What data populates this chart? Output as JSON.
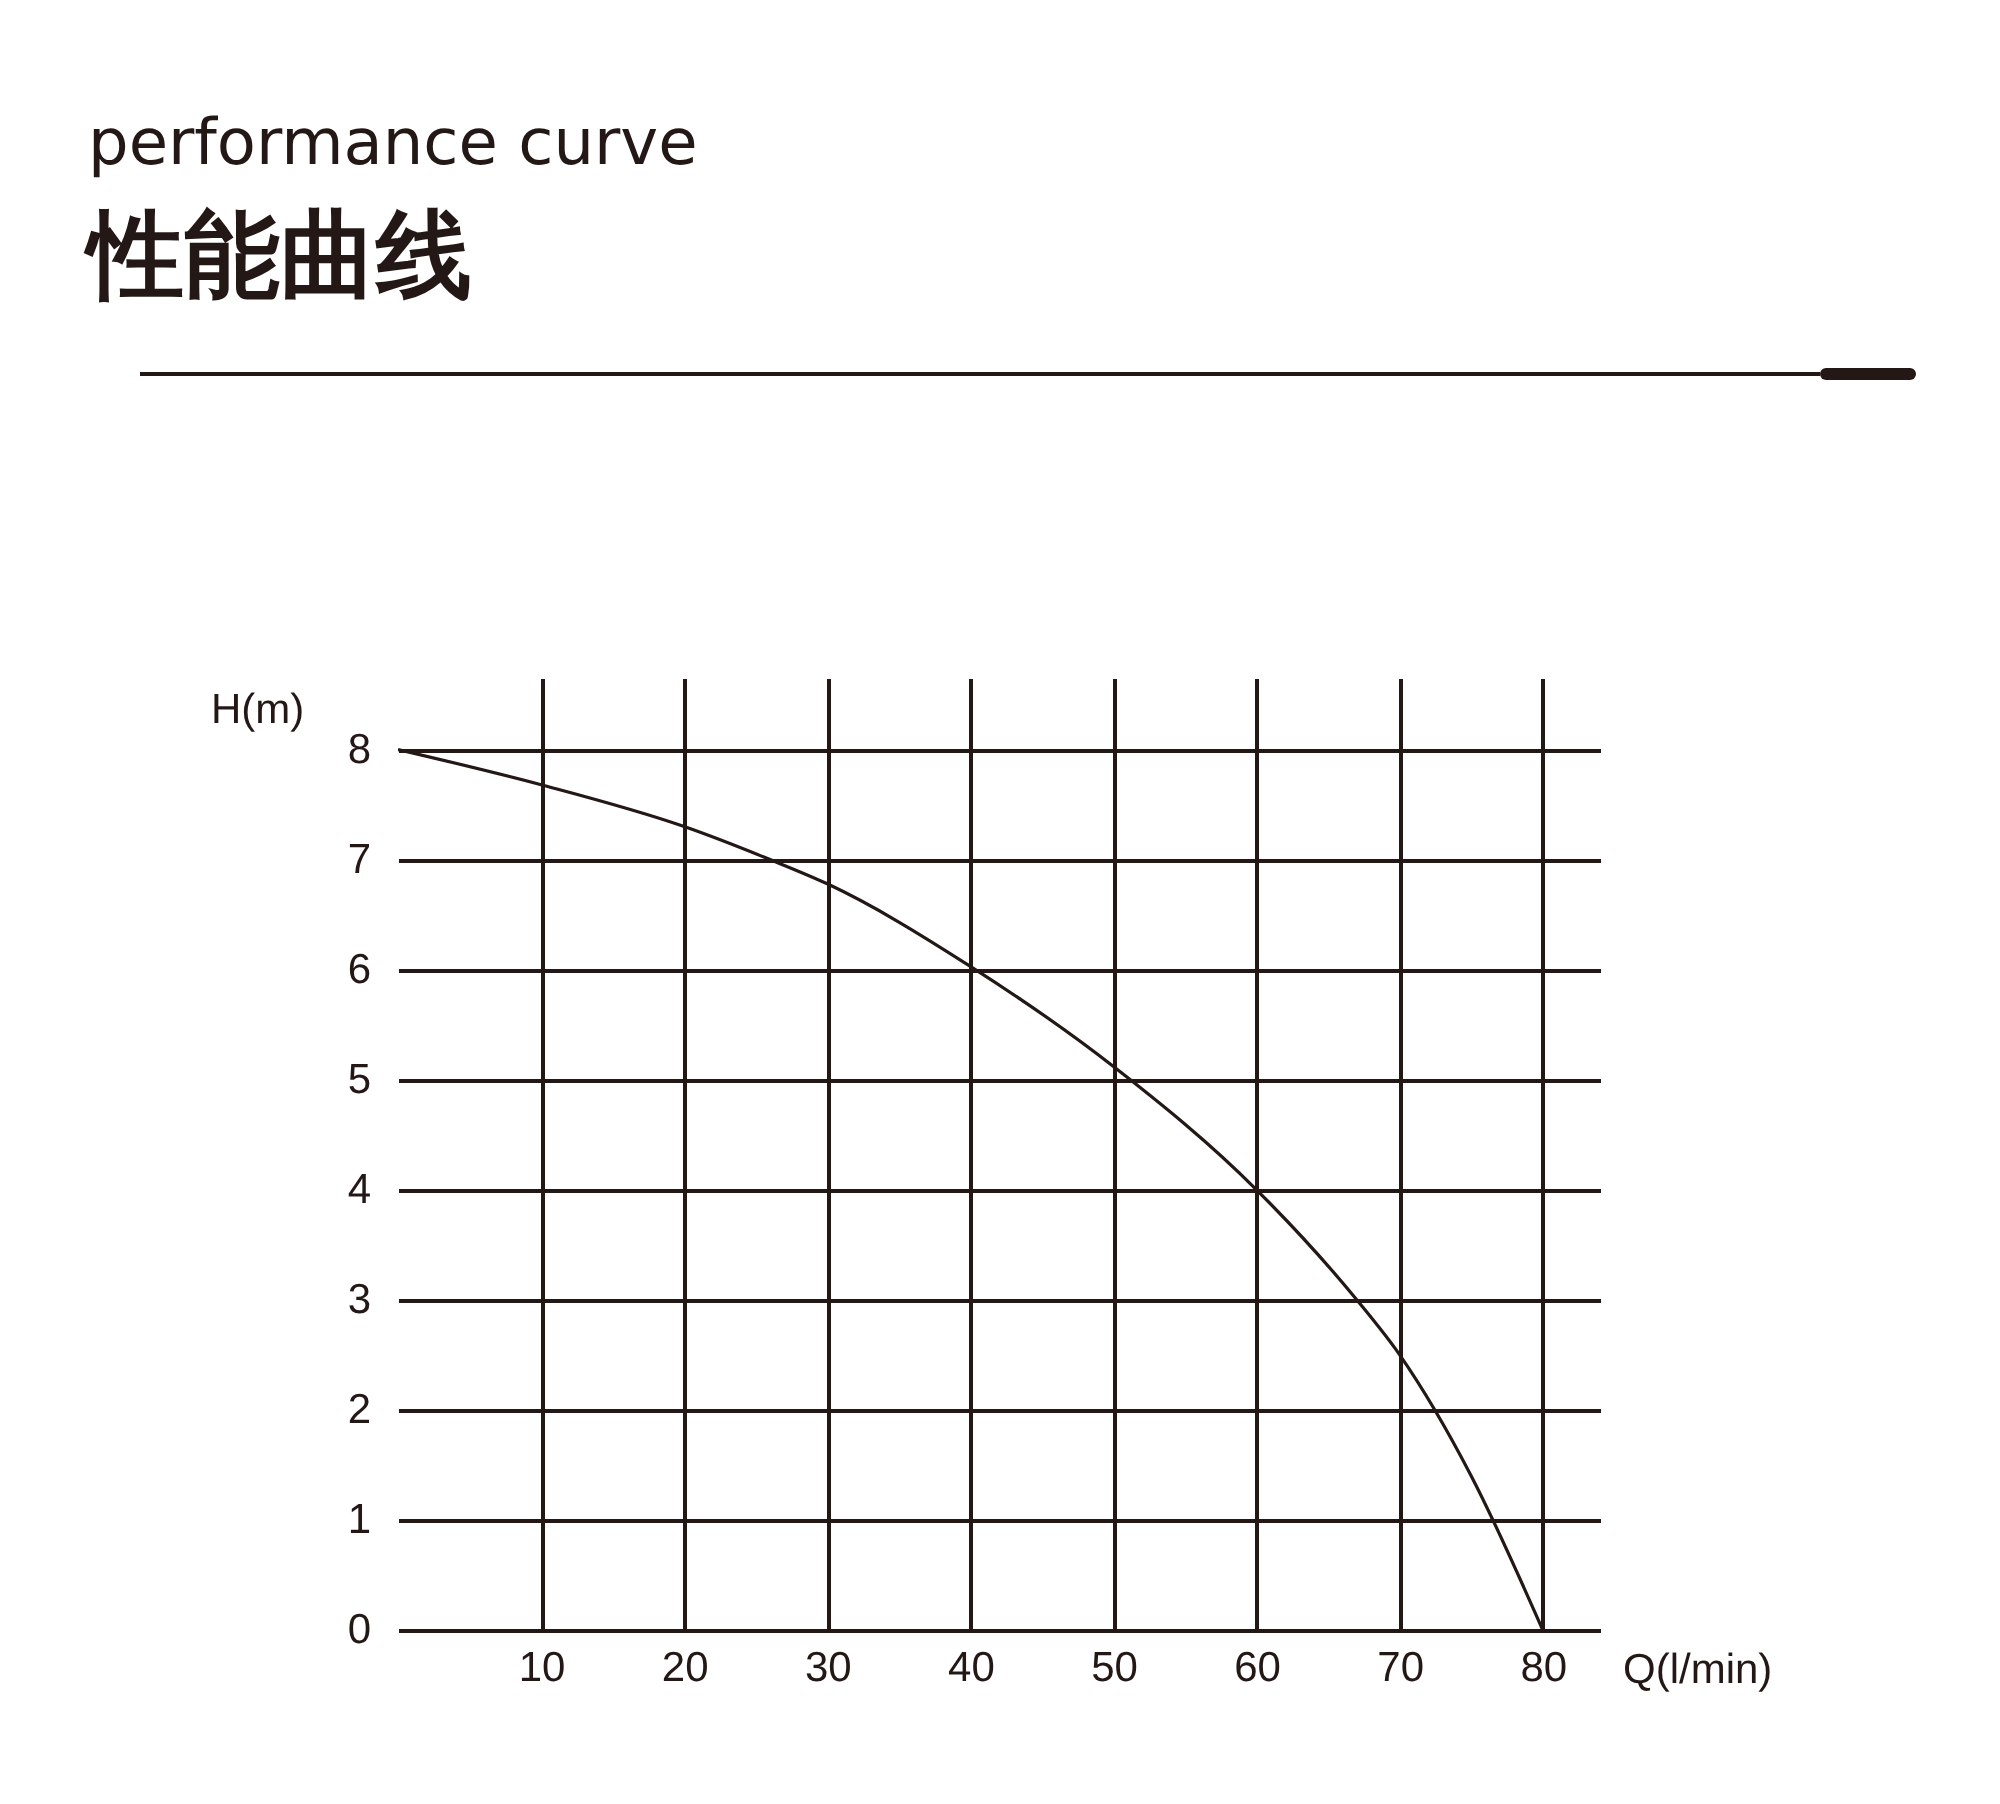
{
  "chart_data": {
    "type": "line",
    "title": "performance curve",
    "subtitle": "性能曲线",
    "xlabel": "Q(l/min)",
    "ylabel": "H(m)",
    "x": [
      0,
      10,
      20,
      26,
      30,
      40,
      50,
      60,
      67,
      70,
      75,
      80
    ],
    "series": [
      {
        "color": "#231815",
        "values": [
          8,
          7.68,
          7.3,
          7.0,
          6.78,
          6.03,
          5.12,
          4.0,
          3.0,
          2.5,
          1.4,
          0
        ]
      }
    ],
    "xlim": [
      0,
      84
    ],
    "ylim": [
      0,
      8.65
    ],
    "xticks": [
      10,
      20,
      30,
      40,
      50,
      60,
      70,
      80
    ],
    "yticks": [
      0,
      1,
      2,
      3,
      4,
      5,
      6,
      7,
      8
    ],
    "grid": true,
    "legend": false,
    "marker": "none",
    "line_style": "solid"
  }
}
